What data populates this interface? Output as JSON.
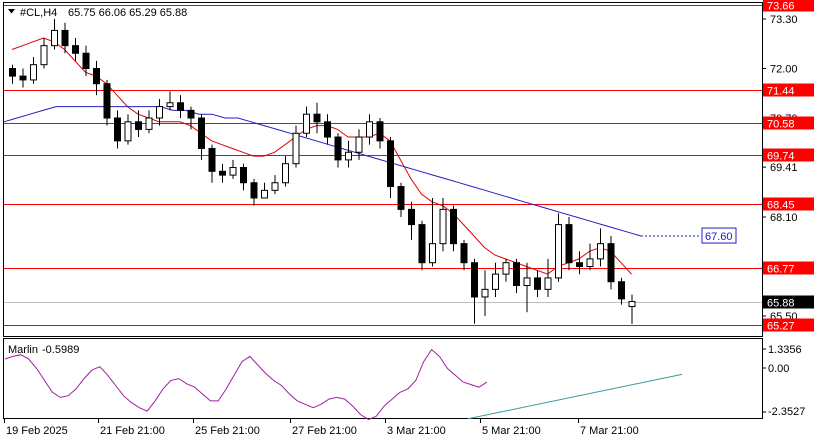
{
  "header": {
    "symbol": "#CL,H4",
    "ohlc": "65.75 66.06 65.29 65.88"
  },
  "indicator": {
    "name": "Marlin",
    "value": "-0.5989",
    "ticks": [
      "1.3356",
      "0.00",
      "-2.3527"
    ]
  },
  "colors": {
    "candle_up": "#ffffff",
    "candle_down": "#000000",
    "level_line": "#ff0000",
    "ma_fast": "#e00000",
    "ma_slow": "#2020c0",
    "oscillator": "#a020a0",
    "trendline": "#3a9a9a",
    "label_blue": "#2020c0"
  },
  "chart_data": {
    "type": "candlestick",
    "instrument": "#CL",
    "timeframe": "H4",
    "ylim": [
      65.0,
      73.8
    ],
    "y_ticks": [
      "73.30",
      "72.00",
      "70.70",
      "69.41",
      "68.10",
      "66.80",
      "65.50"
    ],
    "x_labels": [
      "19 Feb 2025",
      "21 Feb 21:00",
      "25 Feb 21:00",
      "27 Feb 21:00",
      "3 Mar 21:00",
      "5 Mar 21:00",
      "7 Mar 21:00"
    ],
    "levels": [
      {
        "value": 73.66,
        "label": "73.66"
      },
      {
        "value": 71.44,
        "label": "71.44"
      },
      {
        "value": 70.58,
        "label": "70.58"
      },
      {
        "value": 69.74,
        "label": "69.74"
      },
      {
        "value": 68.45,
        "label": "68.45"
      },
      {
        "value": 66.77,
        "label": "66.77"
      },
      {
        "value": 65.27,
        "label": "65.27"
      }
    ],
    "current_price": {
      "value": 65.88,
      "label": "65.88"
    },
    "ma_slow_projection": {
      "value": 67.6,
      "label": "67.60"
    },
    "candles": [
      [
        72.0,
        71.8,
        72.1,
        71.6
      ],
      [
        71.8,
        71.7,
        72.0,
        71.5
      ],
      [
        71.7,
        72.1,
        72.3,
        71.6
      ],
      [
        72.1,
        72.6,
        72.8,
        72.0
      ],
      [
        72.6,
        73.0,
        73.3,
        72.5
      ],
      [
        73.0,
        72.6,
        73.2,
        72.4
      ],
      [
        72.6,
        72.4,
        72.8,
        72.2
      ],
      [
        72.4,
        72.0,
        72.6,
        71.8
      ],
      [
        72.0,
        71.6,
        72.2,
        71.3
      ],
      [
        71.6,
        70.7,
        71.7,
        70.5
      ],
      [
        70.7,
        70.1,
        70.9,
        69.9
      ],
      [
        70.1,
        70.6,
        70.8,
        70.0
      ],
      [
        70.6,
        70.4,
        70.9,
        70.2
      ],
      [
        70.4,
        70.7,
        70.9,
        70.3
      ],
      [
        70.7,
        71.0,
        71.2,
        70.5
      ],
      [
        71.0,
        71.1,
        71.4,
        70.9
      ],
      [
        71.1,
        70.9,
        71.3,
        70.7
      ],
      [
        70.9,
        70.7,
        71.0,
        70.4
      ],
      [
        70.7,
        69.9,
        70.8,
        69.6
      ],
      [
        69.9,
        69.3,
        70.0,
        69.0
      ],
      [
        69.3,
        69.2,
        69.5,
        69.0
      ],
      [
        69.2,
        69.4,
        69.6,
        69.1
      ],
      [
        69.4,
        69.0,
        69.5,
        68.8
      ],
      [
        69.0,
        68.6,
        69.1,
        68.4
      ],
      [
        68.6,
        68.8,
        69.0,
        68.6
      ],
      [
        68.8,
        69.0,
        69.2,
        68.7
      ],
      [
        69.0,
        69.5,
        69.7,
        68.9
      ],
      [
        69.5,
        70.3,
        70.5,
        69.4
      ],
      [
        70.3,
        70.8,
        71.0,
        70.2
      ],
      [
        70.8,
        70.6,
        71.1,
        70.3
      ],
      [
        70.6,
        70.2,
        70.8,
        70.0
      ],
      [
        70.2,
        69.6,
        70.3,
        69.4
      ],
      [
        69.6,
        69.8,
        70.1,
        69.4
      ],
      [
        69.8,
        70.2,
        70.4,
        69.6
      ],
      [
        70.2,
        70.6,
        70.8,
        70.0
      ],
      [
        70.6,
        70.1,
        70.7,
        69.9
      ],
      [
        70.1,
        68.9,
        70.2,
        68.6
      ],
      [
        68.9,
        68.3,
        69.0,
        68.1
      ],
      [
        68.3,
        67.9,
        68.5,
        67.5
      ],
      [
        67.9,
        66.9,
        68.0,
        66.7
      ],
      [
        66.9,
        67.4,
        68.6,
        66.8
      ],
      [
        67.4,
        68.3,
        68.6,
        67.2
      ],
      [
        68.3,
        67.4,
        68.4,
        67.2
      ],
      [
        67.4,
        66.9,
        67.5,
        66.7
      ],
      [
        66.9,
        66.0,
        67.0,
        65.3
      ],
      [
        66.0,
        66.2,
        66.7,
        65.5
      ],
      [
        66.2,
        66.6,
        66.9,
        66.0
      ],
      [
        66.6,
        66.9,
        67.0,
        66.4
      ],
      [
        66.9,
        66.3,
        67.0,
        66.1
      ],
      [
        66.3,
        66.5,
        66.9,
        65.6
      ],
      [
        66.5,
        66.2,
        66.7,
        66.0
      ],
      [
        66.2,
        66.5,
        67.0,
        66.0
      ],
      [
        66.5,
        67.9,
        68.2,
        66.4
      ],
      [
        67.9,
        66.9,
        68.1,
        66.7
      ],
      [
        66.9,
        66.8,
        67.2,
        66.6
      ],
      [
        66.8,
        67.0,
        67.4,
        66.7
      ],
      [
        67.0,
        67.4,
        67.8,
        66.8
      ],
      [
        67.4,
        66.4,
        67.6,
        66.2
      ],
      [
        66.4,
        65.95,
        66.5,
        65.8
      ],
      [
        65.75,
        65.88,
        66.06,
        65.29
      ]
    ],
    "ma_fast": [
      72.5,
      72.6,
      72.7,
      72.8,
      72.7,
      72.5,
      72.2,
      71.9,
      71.8,
      71.6,
      71.3,
      71.0,
      70.8,
      70.7,
      70.6,
      70.6,
      70.6,
      70.5,
      70.3,
      70.1,
      70.0,
      69.9,
      69.8,
      69.7,
      69.7,
      69.8,
      70.0,
      70.2,
      70.4,
      70.5,
      70.5,
      70.4,
      70.2,
      70.2,
      70.2,
      70.3,
      70.1,
      69.6,
      69.1,
      68.7,
      68.5,
      68.4,
      68.2,
      67.9,
      67.6,
      67.3,
      67.1,
      67.0,
      66.9,
      66.8,
      66.7,
      66.6,
      66.8,
      66.9,
      67.0,
      67.2,
      67.3,
      67.2,
      66.9,
      66.6
    ],
    "ma_slow": [
      70.6,
      70.7,
      70.8,
      70.9,
      71.0,
      71.0,
      71.0,
      71.0,
      71.0,
      71.0,
      71.0,
      71.0,
      71.0,
      70.9,
      70.9,
      70.8,
      70.8,
      70.7,
      70.7,
      70.6,
      70.5,
      70.4,
      70.3,
      70.2,
      70.1,
      70.0,
      69.9,
      69.8,
      69.7,
      69.6,
      69.5,
      69.4,
      69.3,
      69.2,
      69.1,
      69.0,
      68.9,
      68.8,
      68.7,
      68.6,
      68.5,
      68.4,
      68.3,
      68.2,
      68.1,
      68.0,
      67.9,
      67.8,
      67.7,
      67.6
    ],
    "oscillator": [
      0.75,
      0.9,
      1.0,
      0.75,
      0.2,
      -0.5,
      -1.2,
      -1.5,
      -1.4,
      -1.0,
      -0.4,
      0.1,
      0.3,
      -0.2,
      -0.8,
      -1.4,
      -1.8,
      -2.1,
      -2.3,
      -1.7,
      -1.0,
      -0.5,
      -0.4,
      -0.7,
      -0.9,
      -1.3,
      -1.7,
      -1.7,
      -1.0,
      -0.2,
      0.6,
      0.9,
      0.4,
      -0.1,
      -0.5,
      -0.8,
      -1.3,
      -1.7,
      -1.9,
      -2.1,
      -1.9,
      -1.6,
      -1.5,
      -1.6,
      -2.0,
      -2.5,
      -2.8,
      -2.6,
      -2.0,
      -1.6,
      -1.2,
      -1.0,
      -0.5,
      0.6,
      1.3,
      0.9,
      0.2,
      -0.2,
      -0.6,
      -0.75,
      -0.9,
      -0.6
    ]
  }
}
